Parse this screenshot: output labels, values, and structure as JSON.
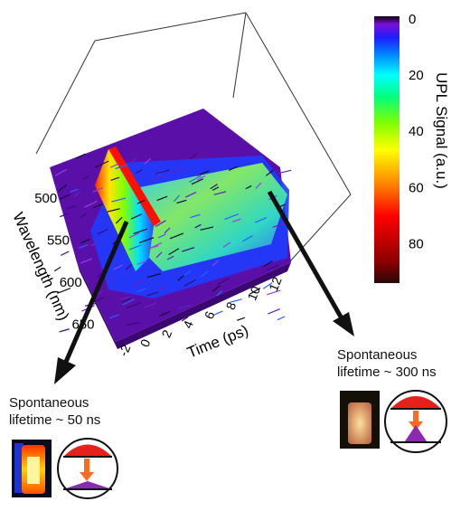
{
  "chart_data": {
    "type": "surface",
    "axes": {
      "time": {
        "label": "Time (ps)",
        "ticks": [
          "-2",
          "0",
          "2",
          "4",
          "6",
          "8",
          "10",
          "12"
        ],
        "range": [
          -2,
          13
        ]
      },
      "wavelength": {
        "label": "Wavelength (nm)",
        "ticks": [
          "500",
          "550",
          "600",
          "650"
        ],
        "range": [
          470,
          670
        ]
      }
    },
    "colorbar": {
      "label": "UPL Signal (a.u.)",
      "ticks": [
        "0",
        "20",
        "40",
        "60",
        "80"
      ],
      "range": [
        0,
        95
      ],
      "colors": [
        "#1a0a0a",
        "#8b0000",
        "#ff0000",
        "#ff8c00",
        "#ffff00",
        "#7fff00",
        "#00ff7f",
        "#00ffff",
        "#0080ff",
        "#0000ff",
        "#6a0dad",
        "#8b00ff"
      ]
    },
    "features": [
      {
        "description": "fast decaying peak near t=0",
        "time_ps": 0,
        "peak_signal": 80,
        "wavelength_range_nm": [
          490,
          650
        ]
      },
      {
        "description": "long-lived plateau",
        "time_ps_range": [
          2,
          13
        ],
        "signal": 35
      }
    ]
  },
  "annotations": {
    "left_line1": "Spontaneous",
    "left_line2": "lifetime ~ 50 ns",
    "right_line1": "Spontaneous",
    "right_line2": "lifetime ~ 300 ns"
  }
}
